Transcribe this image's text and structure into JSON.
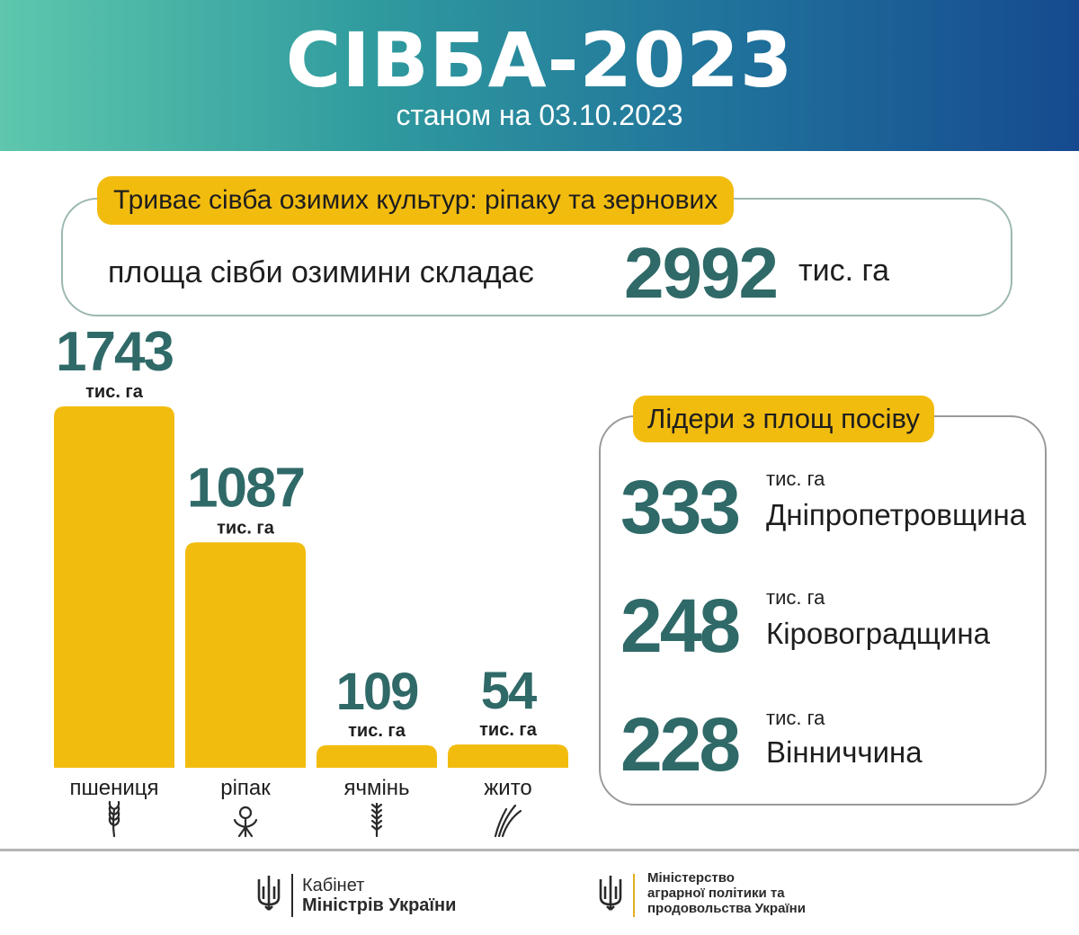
{
  "header": {
    "title": "СІВБА-2023",
    "subtitle": "станом на 03.10.2023"
  },
  "summary": {
    "badge": "Триває сівба озимих культур: ріпаку та зернових",
    "text": "площа сівби озимини складає",
    "total": "2992",
    "unit": "тис. га"
  },
  "chart_data": {
    "type": "bar",
    "categories": [
      "пшениця",
      "ріпак",
      "ячмінь",
      "жито"
    ],
    "values": [
      1743,
      1087,
      109,
      54
    ],
    "value_labels": [
      "1743",
      "1087",
      "109",
      "54"
    ],
    "unit": "тис. га",
    "icons": [
      "wheat-icon",
      "flower-icon",
      "barley-icon",
      "rye-icon"
    ],
    "bar_color": "#f2bc0f",
    "value_color": "#2f6968"
  },
  "leaders": {
    "badge": "Лідери з площ посіву",
    "items": [
      {
        "value": "333",
        "unit": "тис. га",
        "region": "Дніпропетровщина"
      },
      {
        "value": "248",
        "unit": "тис. га",
        "region": "Кіровоградщина"
      },
      {
        "value": "228",
        "unit": "тис. га",
        "region": "Вінниччина"
      }
    ]
  },
  "footer": {
    "cabinet_line1": "Кабінет",
    "cabinet_line2": "Міністрів України",
    "ministry_line1": "Міністерство",
    "ministry_line2": "аграрної політики та",
    "ministry_line3": "продовольства України"
  },
  "colors": {
    "accent_yellow": "#f2bc0f",
    "accent_teal": "#2f6968",
    "header_gradient_start": "#5ec7ad",
    "header_gradient_end": "#164a8f"
  }
}
